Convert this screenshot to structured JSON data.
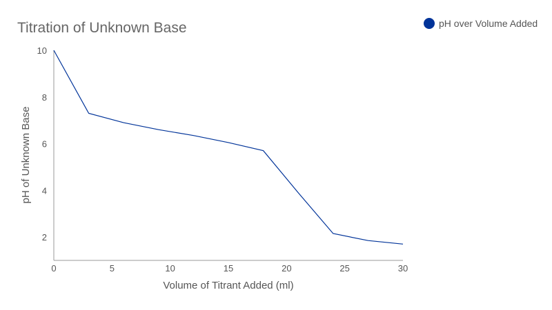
{
  "chart_data": {
    "type": "line",
    "title": "Titration of Unknown Base",
    "xlabel": "Volume of Titrant Added (ml)",
    "ylabel": "pH of Unknown Base",
    "xlim": [
      0,
      30
    ],
    "ylim": [
      1,
      10
    ],
    "xticks": [
      0,
      5,
      10,
      15,
      20,
      25,
      30
    ],
    "yticks": [
      2,
      4,
      6,
      8,
      10
    ],
    "grid": false,
    "legend_position": "top-right",
    "series": [
      {
        "name": "pH over Volume Added",
        "color": "#003399",
        "x": [
          0,
          3,
          6,
          9,
          12,
          15,
          18,
          21,
          24,
          27,
          30
        ],
        "y": [
          10,
          7.3,
          6.9,
          6.6,
          6.35,
          6.05,
          5.7,
          3.9,
          2.15,
          1.85,
          1.7
        ]
      }
    ]
  }
}
